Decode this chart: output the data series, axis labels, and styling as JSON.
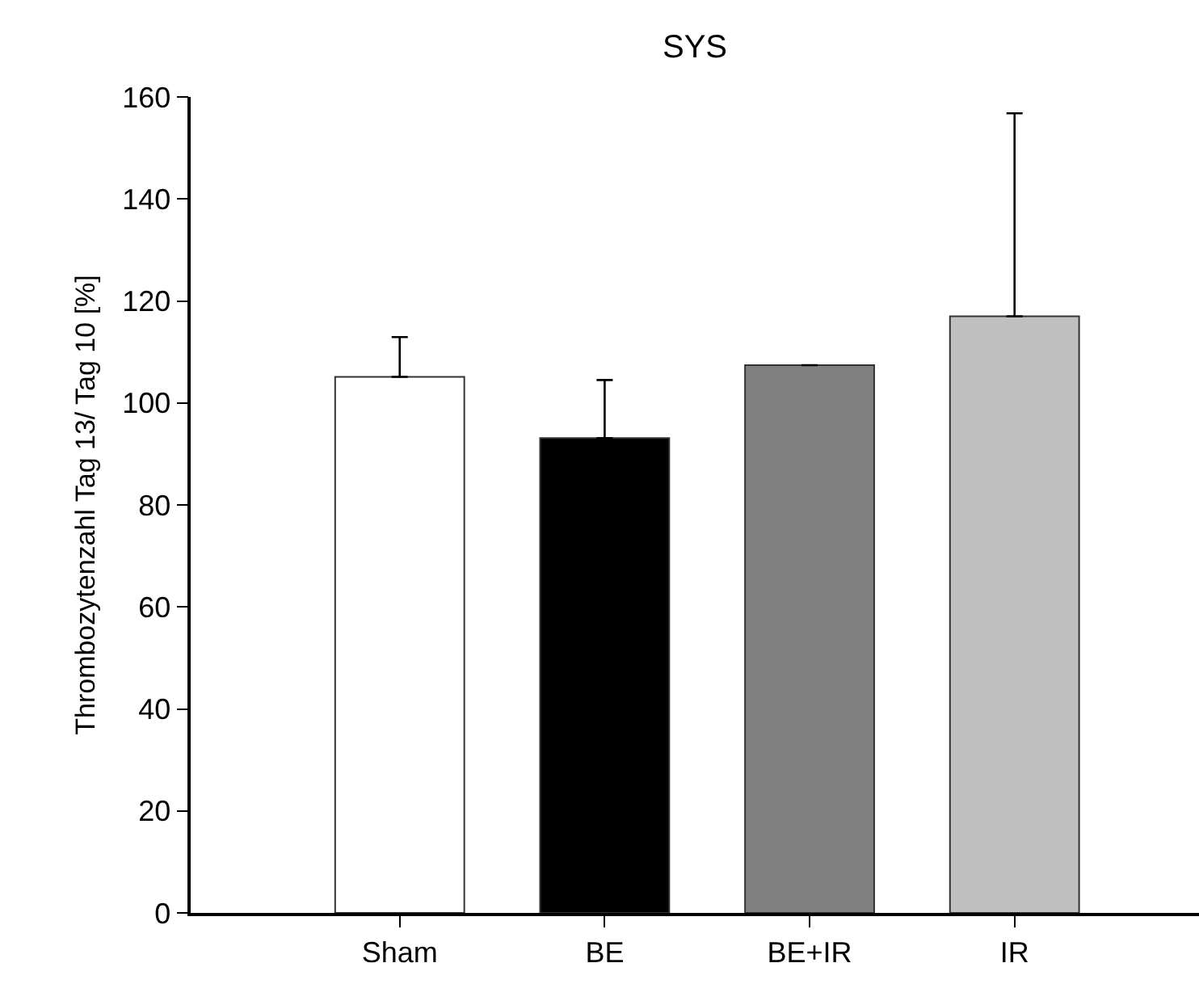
{
  "chart_data": {
    "type": "bar",
    "title": "SYS",
    "ylabel": "Thrombozytenzahl Tag 13/ Tag 10 [%]",
    "categories": [
      "Sham",
      "BE",
      "BE+IR",
      "IR"
    ],
    "values": [
      105.1,
      93.1,
      107.4,
      117.0
    ],
    "colors": [
      "#ffffff",
      "#000000",
      "#808080",
      "#c0c0c0"
    ],
    "errors": [
      [
        105.1,
        112.9
      ],
      [
        93.1,
        104.5
      ],
      null,
      [
        117.0,
        156.8
      ]
    ],
    "ylim": [
      0,
      160
    ],
    "yticks": [
      0,
      20,
      40,
      60,
      80,
      100,
      120,
      140,
      160
    ],
    "grid": false,
    "legend": false
  }
}
